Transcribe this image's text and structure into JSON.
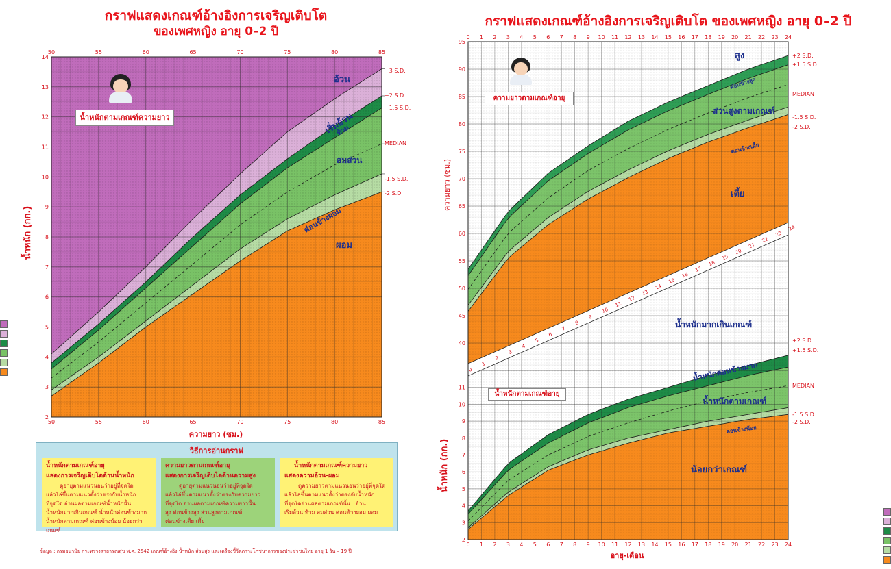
{
  "left_chart": {
    "title_line1": "กราฟแสดงเกณฑ์อ้างอิงการเจริญเติบโต",
    "title_line2": "ของเพศหญิง อายุ 0–2 ปี",
    "panel_label": "น้ำหนักตามเกณฑ์ความยาว",
    "zone_labels": [
      "อ้วน",
      "เริ่มอ้วน",
      "ท้วม",
      "สมส่วน",
      "ค่อนข้างผอม",
      "ผอม"
    ],
    "zone_colors": [
      "#c06cbb",
      "#dbb0d8",
      "#1e8c47",
      "#79c266",
      "#b6dca4",
      "#f78a1d"
    ]
  },
  "right_chart": {
    "title": "กราฟแสดงเกณฑ์อ้างอิงการเจริญเติบโต ของเพศหญิง อายุ 0–2 ปี",
    "length_panel_label": "ความยาวตามเกณฑ์อายุ",
    "length_zone_labels": [
      "สูง",
      "ค่อนข้างสูง",
      "ส่วนสูงตามเกณฑ์",
      "ค่อนข้างเตี้ย",
      "เตี้ย"
    ],
    "weight_panel_label": "น้ำหนักตามเกณฑ์อายุ",
    "weight_zone_labels": [
      "น้ำหนักมากเกินเกณฑ์",
      "น้ำหนักค่อนข้างมาก",
      "น้ำหนักตามเกณฑ์",
      "ค่อนข้างน้อย",
      "น้อยกว่าเกณฑ์"
    ]
  },
  "howto": {
    "title": "วิธีการอ่านกราฟ",
    "boxes": [
      {
        "heading1": "น้ำหนักตามเกณฑ์อายุ",
        "heading2": "แสดงการเจริญเติบโตด้านน้ำหนัก",
        "lines": [
          "ดูอายุตามแนวนอนว่าอยู่ที่จุดใด",
          "แล้วไล่ขึ้นตามแนวตั้งว่าตรงกับน้ำหนัก",
          "ที่จุดใด อ่านผลตามเกณฑ์น้ำหนักนั้น :",
          "น้ำหนักมากเกินเกณฑ์ น้ำหนักค่อนข้างมาก",
          "น้ำหนักตามเกณฑ์ ค่อนข้างน้อย น้อยกว่าเกณฑ์"
        ]
      },
      {
        "heading1": "ความยาวตามเกณฑ์อายุ",
        "heading2": "แสดงการเจริญเติบโตด้านความสูง",
        "lines": [
          "ดูอายุตามแนวนอนว่าอยู่ที่จุดใด",
          "แล้วไล่ขึ้นตามแนวตั้งว่าตรงกับความยาว",
          "ที่จุดใด อ่านผลตามเกณฑ์ความยาวนั้น :",
          "สูง ค่อนข้างสูง ส่วนสูงตามเกณฑ์",
          "ค่อนข้างเตี้ย เตี้ย"
        ]
      },
      {
        "heading1": "น้ำหนักตามเกณฑ์ความยาว",
        "heading2": "แสดงความอ้วน-ผอม",
        "lines": [
          "ดูความยาวตามแนวนอนว่าอยู่ที่จุดใด",
          "แล้วไล่ขึ้นตามแนวตั้งว่าตรงกับน้ำหนัก",
          "ที่จุดใดอ่านผลตามเกณฑ์นั้น : อ้วน",
          "เริ่มอ้วน ท้วม สมส่วน ค่อนข้างผอม ผอม"
        ]
      }
    ]
  },
  "source": "ข้อมูล : กรมอนามัย กระทรวงสาธารณสุข พ.ศ. 2542 เกณฑ์อ้างอิง น้ำหนัก ส่วนสูง และเครื่องชี้วัดภาวะโภชนาการของประชาชนไทย อายุ 1 วัน – 19 ปี",
  "chart_data": [
    {
      "type": "area",
      "id": "weight_for_length",
      "xlabel": "ความยาว (ซม.)",
      "ylabel": "น้ำหนัก (กก.)",
      "xlim": [
        50,
        85
      ],
      "ylim": [
        2,
        14
      ],
      "x_ticks": [
        50,
        55,
        60,
        65,
        70,
        75,
        80,
        85
      ],
      "y_ticks": [
        2,
        3,
        4,
        5,
        6,
        7,
        8,
        9,
        10,
        11,
        12,
        13,
        14
      ],
      "x": [
        50,
        55,
        60,
        65,
        70,
        75,
        80,
        85
      ],
      "series": [
        {
          "name": "+3 S.D.",
          "values": [
            4.1,
            5.5,
            7.0,
            8.6,
            10.1,
            11.5,
            12.6,
            13.6
          ]
        },
        {
          "name": "+2 S.D.",
          "values": [
            3.8,
            5.1,
            6.5,
            8.0,
            9.4,
            10.6,
            11.7,
            12.7
          ]
        },
        {
          "name": "+1.5 S.D.",
          "values": [
            3.6,
            4.9,
            6.3,
            7.7,
            9.1,
            10.3,
            11.3,
            12.3
          ]
        },
        {
          "name": "MEDIAN",
          "values": [
            3.3,
            4.5,
            5.8,
            7.1,
            8.4,
            9.5,
            10.4,
            11.1
          ]
        },
        {
          "name": "-1.5 S.D.",
          "values": [
            2.9,
            4.0,
            5.2,
            6.4,
            7.6,
            8.6,
            9.4,
            10.1
          ]
        },
        {
          "name": "-2 S.D.",
          "values": [
            2.7,
            3.8,
            5.0,
            6.1,
            7.2,
            8.2,
            8.9,
            9.5
          ]
        }
      ]
    },
    {
      "type": "area",
      "id": "length_for_age",
      "xlabel": "อายุ-เดือน",
      "ylabel": "ความยาว (ซม.)",
      "xlim": [
        0,
        24
      ],
      "ylim": [
        35,
        95
      ],
      "x_ticks": [
        0,
        1,
        2,
        3,
        4,
        5,
        6,
        7,
        8,
        9,
        10,
        11,
        12,
        13,
        14,
        15,
        16,
        17,
        18,
        19,
        20,
        21,
        22,
        23,
        24
      ],
      "y_ticks": [
        40,
        45,
        50,
        55,
        60,
        65,
        70,
        75,
        80,
        85,
        90,
        95
      ],
      "x": [
        0,
        3,
        6,
        9,
        12,
        15,
        18,
        21,
        24
      ],
      "series": [
        {
          "name": "+2 S.D.",
          "values": [
            53.5,
            64,
            71,
            76,
            80.5,
            84,
            87,
            90,
            92.5
          ]
        },
        {
          "name": "+1.5 S.D.",
          "values": [
            52.3,
            62.8,
            69.6,
            74.6,
            78.9,
            82.4,
            85.4,
            88.3,
            90.8
          ]
        },
        {
          "name": "MEDIAN",
          "values": [
            49.8,
            60,
            66.5,
            71.5,
            75.5,
            79,
            82,
            84.8,
            87.2
          ]
        },
        {
          "name": "-1.5 S.D.",
          "values": [
            46.9,
            56.7,
            62.9,
            67.7,
            71.6,
            75.1,
            78.1,
            80.7,
            83.1
          ]
        },
        {
          "name": "-2 S.D.",
          "values": [
            45.8,
            55.5,
            61.6,
            66.3,
            70.2,
            73.7,
            76.7,
            79.3,
            81.7
          ]
        }
      ],
      "x_labels": [
        "0",
        "1",
        "2",
        "3",
        "4",
        "5",
        "6",
        "7",
        "8",
        "9",
        "10",
        "11",
        "12",
        "13",
        "14",
        "15",
        "16",
        "17",
        "18",
        "19",
        "20",
        "21",
        "22",
        "23",
        "24"
      ]
    },
    {
      "type": "area",
      "id": "weight_for_age",
      "xlabel": "อายุ-เดือน",
      "ylabel": "น้ำหนัก (กก.)",
      "xlim": [
        0,
        24
      ],
      "ylim": [
        2,
        12
      ],
      "x_ticks": [
        0,
        1,
        2,
        3,
        4,
        5,
        6,
        7,
        8,
        9,
        10,
        11,
        12,
        13,
        14,
        15,
        16,
        17,
        18,
        19,
        20,
        21,
        22,
        23,
        24
      ],
      "y_ticks": [
        2,
        3,
        4,
        5,
        6,
        7,
        8,
        9,
        10,
        11
      ],
      "x": [
        0,
        3,
        6,
        9,
        12,
        15,
        18,
        21,
        24
      ],
      "series": [
        {
          "name": "+2 S.D.",
          "values": [
            3.7,
            6.5,
            8.2,
            9.4,
            10.3,
            11.0,
            11.7,
            12.3,
            12.9
          ]
        },
        {
          "name": "+1.5 S.D.",
          "values": [
            3.5,
            6.1,
            7.7,
            8.9,
            9.8,
            10.5,
            11.1,
            11.7,
            12.2
          ]
        },
        {
          "name": "MEDIAN",
          "values": [
            3.1,
            5.5,
            7.0,
            8.1,
            8.9,
            9.6,
            10.2,
            10.7,
            11.1
          ]
        },
        {
          "name": "-1.5 S.D.",
          "values": [
            2.7,
            4.8,
            6.3,
            7.3,
            8.0,
            8.5,
            9.0,
            9.4,
            9.8
          ]
        },
        {
          "name": "-2 S.D.",
          "values": [
            2.6,
            4.6,
            6.1,
            7.0,
            7.7,
            8.3,
            8.7,
            9.1,
            9.4
          ]
        }
      ]
    }
  ]
}
